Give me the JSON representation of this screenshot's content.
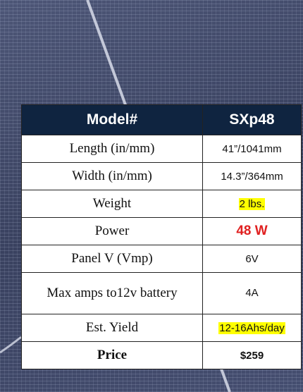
{
  "table": {
    "header": [
      "Model#",
      "SXp48"
    ],
    "rows": [
      [
        "Length (in/mm)",
        "41”/1041mm"
      ],
      [
        "Width (in/mm)",
        "14.3”/364mm"
      ],
      [
        "Weight",
        "2 lbs."
      ],
      [
        "Power",
        "48 W"
      ],
      [
        "Panel V (Vmp)",
        "6V"
      ],
      [
        "Max amps to12v battery",
        "4A"
      ],
      [
        "Est. Yield",
        "12-16Ahs/day"
      ],
      [
        "Price",
        "$259"
      ]
    ]
  }
}
